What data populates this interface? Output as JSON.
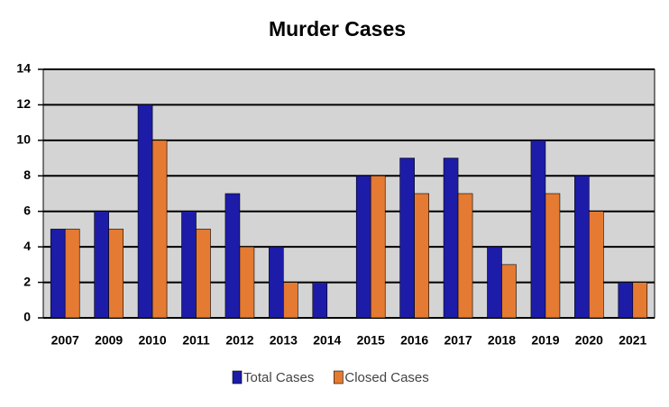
{
  "chart_data": {
    "type": "bar",
    "title": "Murder Cases",
    "categories": [
      "2007",
      "2009",
      "2010",
      "2011",
      "2012",
      "2013",
      "2014",
      "2015",
      "2016",
      "2017",
      "2018",
      "2019",
      "2020",
      "2021"
    ],
    "series": [
      {
        "name": "Total Cases",
        "color": "#1c1ca8",
        "values": [
          5,
          6,
          12,
          6,
          7,
          4,
          2,
          8,
          9,
          9,
          4,
          10,
          8,
          2
        ]
      },
      {
        "name": "Closed Cases",
        "color": "#e57a32",
        "values": [
          5,
          5,
          10,
          5,
          4,
          2,
          0,
          8,
          7,
          7,
          3,
          7,
          6,
          2
        ]
      }
    ],
    "ylim": [
      0,
      14
    ],
    "yticks": [
      0,
      2,
      4,
      6,
      8,
      10,
      12,
      14
    ],
    "grid": true,
    "legend": "bottom"
  }
}
